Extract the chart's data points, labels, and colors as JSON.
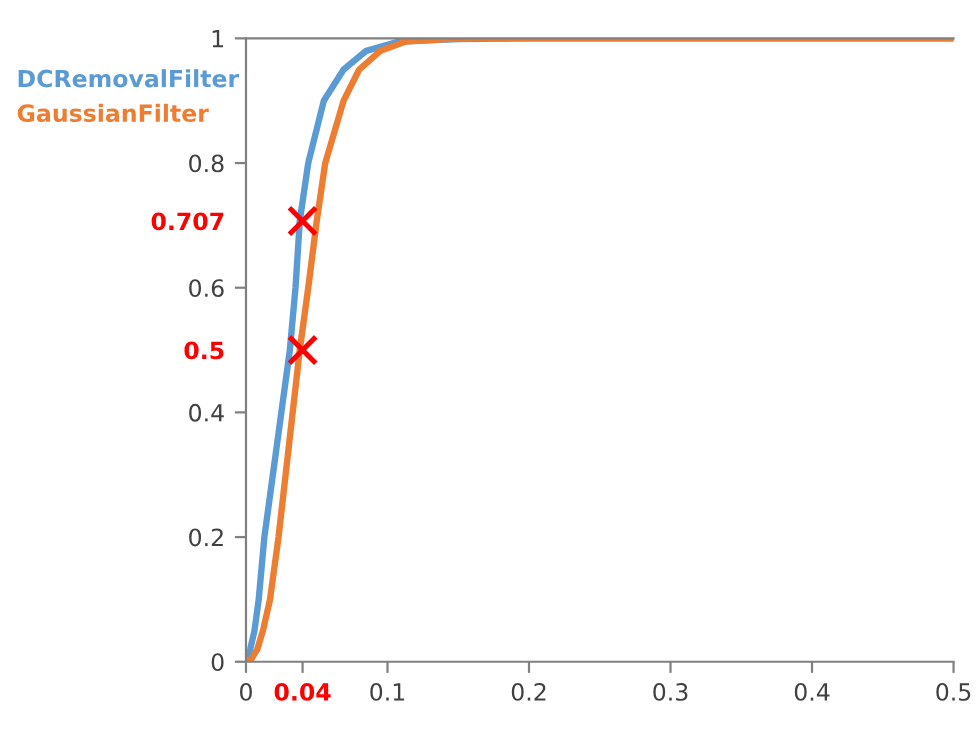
{
  "chart_data": {
    "type": "line",
    "legend": "top left",
    "grid": false,
    "marker": "none",
    "line_style": "solid",
    "xlim": [
      0,
      0.5
    ],
    "ylim": [
      0,
      1
    ],
    "xticks": [
      0,
      0.04,
      0.1,
      0.2,
      0.3,
      0.4,
      0.5
    ],
    "yticks": [
      0,
      0.2,
      0.4,
      0.5,
      0.6,
      0.707,
      0.8,
      1
    ],
    "series": [
      {
        "name": "DCRemovalFilter",
        "color": "#5b9bd5",
        "x": [
          0,
          0.003,
          0.006,
          0.009,
          0.013,
          0.019,
          0.025,
          0.031,
          0.035,
          0.038,
          0.044,
          0.055,
          0.069,
          0.085,
          0.108,
          0.15,
          0.2,
          0.5
        ],
        "values": [
          0,
          0.02,
          0.05,
          0.1,
          0.2,
          0.3,
          0.4,
          0.5,
          0.6,
          0.707,
          0.8,
          0.9,
          0.95,
          0.98,
          0.995,
          0.999,
          1,
          1
        ]
      },
      {
        "name": "GaussianFilter",
        "color": "#ed7d31",
        "x": [
          0,
          0.004,
          0.008,
          0.012,
          0.017,
          0.023,
          0.028,
          0.033,
          0.038,
          0.044,
          0.05,
          0.056,
          0.069,
          0.08,
          0.095,
          0.113,
          0.15,
          0.5
        ],
        "values": [
          0,
          0.005,
          0.02,
          0.05,
          0.1,
          0.2,
          0.3,
          0.4,
          0.5,
          0.6,
          0.707,
          0.8,
          0.9,
          0.95,
          0.98,
          0.995,
          1,
          1
        ]
      },
      {
        "type": "scatter",
        "marker": "cross",
        "color": "#ff0000",
        "x": [
          0.04,
          0.04
        ],
        "values": [
          0.707,
          0.5
        ]
      }
    ]
  }
}
